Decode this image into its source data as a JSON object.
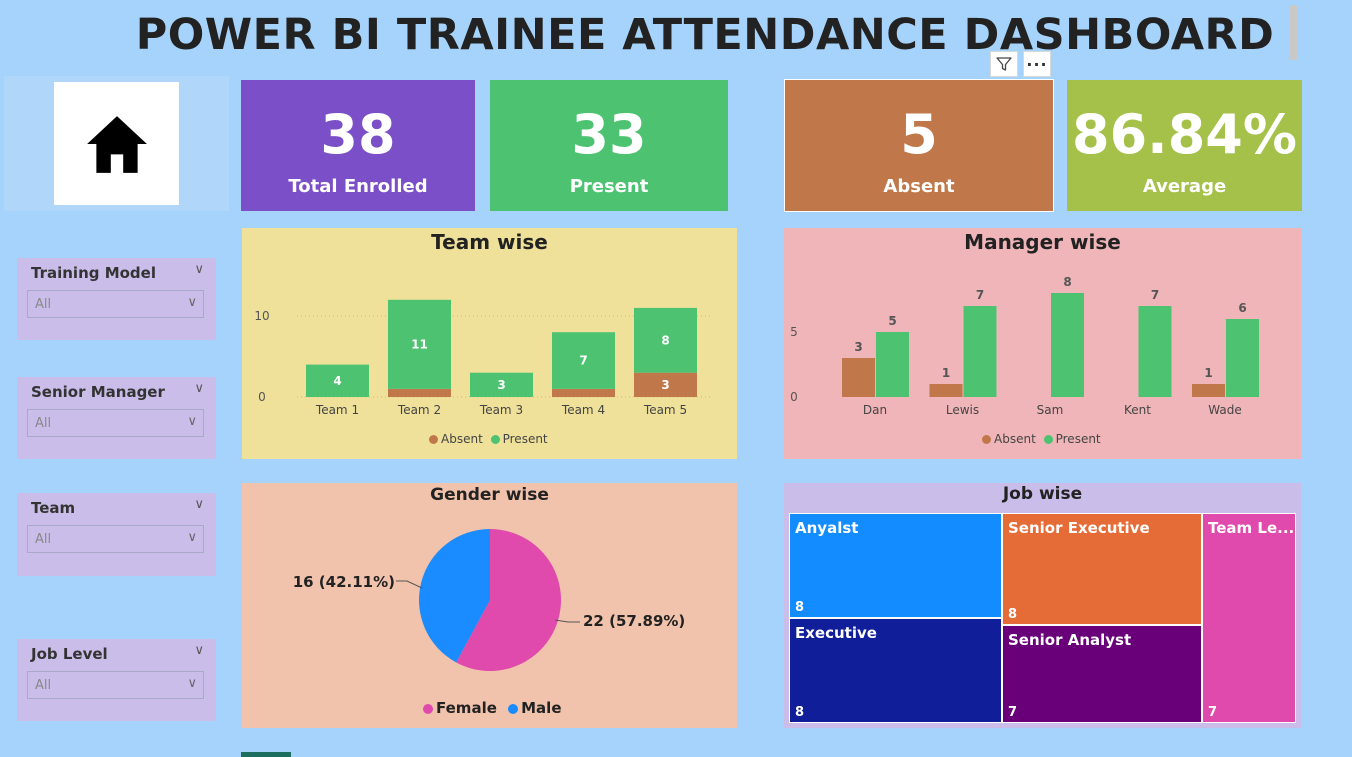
{
  "title": "POWER BI TRAINEE ATTENDANCE DASHBOARD",
  "icons": {
    "home": "home-icon",
    "filter": "filter-icon",
    "more": "more-options-icon"
  },
  "more_glyph": "···",
  "kpis": {
    "enrolled": {
      "value": "38",
      "label": "Total Enrolled"
    },
    "present": {
      "value": "33",
      "label": "Present"
    },
    "absent": {
      "value": "5",
      "label": "Absent"
    },
    "average": {
      "value": "86.84%",
      "label": "Average"
    }
  },
  "slicers": {
    "training_model": {
      "title": "Training Model",
      "value": "All"
    },
    "senior_manager": {
      "title": "Senior Manager",
      "value": "All"
    },
    "team": {
      "title": "Team",
      "value": "All"
    },
    "job_level": {
      "title": "Job Level",
      "value": "All"
    }
  },
  "colors": {
    "absent": "#c0784a",
    "present": "#4dc372",
    "female": "#e04aad",
    "male": "#1a8cff"
  },
  "chart_data": [
    {
      "type": "bar",
      "title": "Team wise",
      "stacked": true,
      "categories": [
        "Team 1",
        "Team 2",
        "Team 3",
        "Team 4",
        "Team 5"
      ],
      "series": [
        {
          "name": "Absent",
          "values": [
            0,
            1,
            0,
            1,
            3
          ]
        },
        {
          "name": "Present",
          "values": [
            4,
            11,
            3,
            7,
            8
          ]
        }
      ],
      "yticks": [
        "0",
        "10"
      ],
      "ylim": [
        0,
        14
      ],
      "legend": "bottom"
    },
    {
      "type": "bar",
      "title": "Manager wise",
      "stacked": false,
      "categories": [
        "Dan",
        "Lewis",
        "Sam",
        "Kent",
        "Wade"
      ],
      "series": [
        {
          "name": "Absent",
          "values": [
            3,
            1,
            0,
            0,
            1
          ]
        },
        {
          "name": "Present",
          "values": [
            5,
            7,
            8,
            7,
            6
          ]
        }
      ],
      "yticks": [
        "0",
        "5"
      ],
      "ylim": [
        0,
        8.4
      ],
      "legend": "bottom"
    },
    {
      "type": "pie",
      "title": "Gender wise",
      "slices": [
        {
          "name": "Female",
          "value": 22,
          "label": "22 (57.89%)"
        },
        {
          "name": "Male",
          "value": 16,
          "label": "16 (42.11%)"
        }
      ],
      "legend": "bottom"
    }
  ],
  "treemap": {
    "title": "Job wise",
    "items": [
      {
        "name": "Anyalst",
        "value": "8",
        "color": "#138cff"
      },
      {
        "name": "Executive",
        "value": "8",
        "color": "#111e9a"
      },
      {
        "name": "Senior Executive",
        "value": "8",
        "color": "#e56b37"
      },
      {
        "name": "Senior Analyst",
        "value": "7",
        "color": "#6a0079"
      },
      {
        "name": "Team Le...",
        "value": "7",
        "color": "#e04aad"
      }
    ]
  }
}
